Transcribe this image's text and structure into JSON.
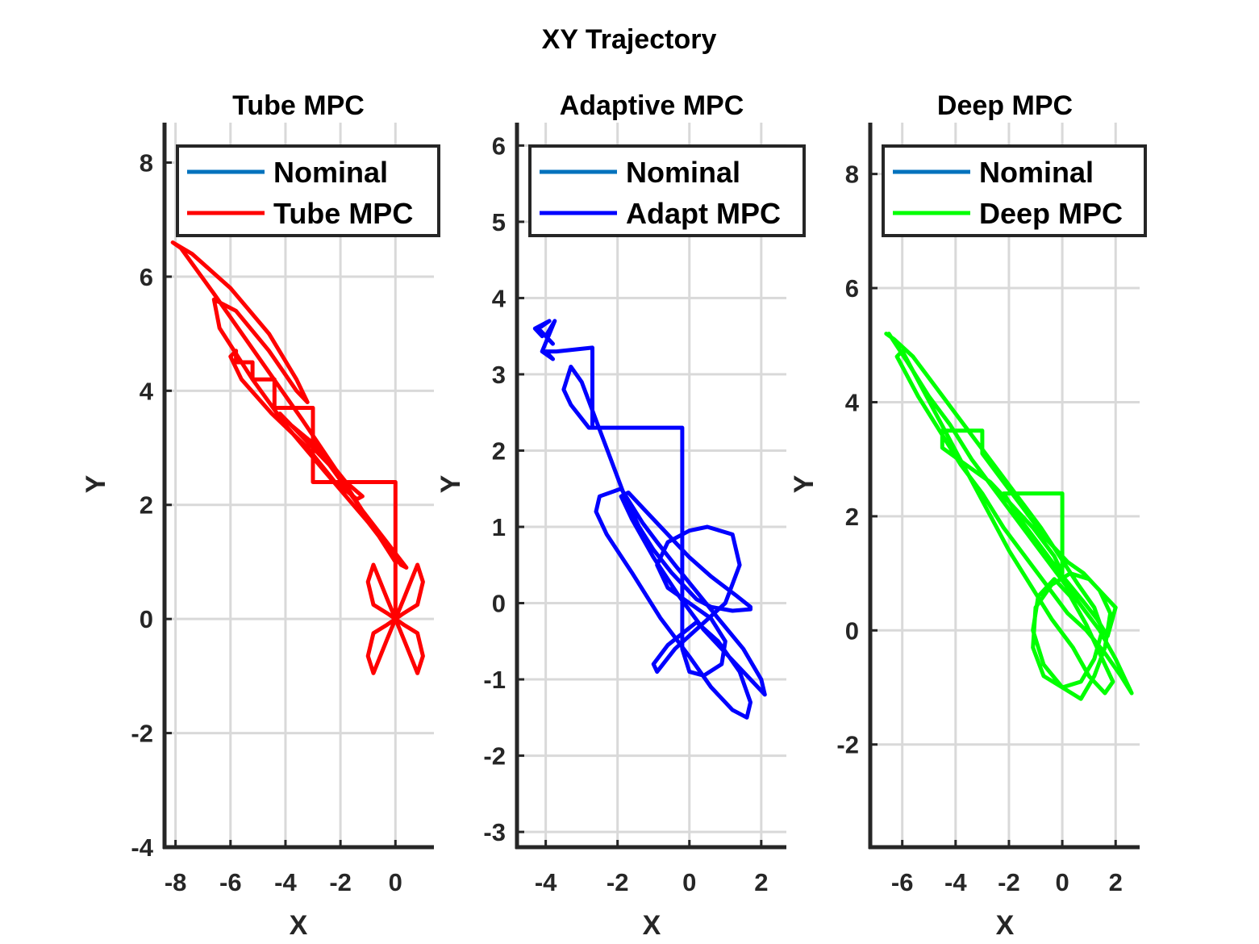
{
  "chart_data": [
    {
      "type": "line",
      "title": "XY Trajectory",
      "subtitle": "Tube MPC",
      "xlabel": "X",
      "ylabel": "Y",
      "xlim": [
        -8.4,
        1.4
      ],
      "ylim": [
        -4,
        8.7
      ],
      "xticks": [
        -8,
        -6,
        -4,
        -2,
        0
      ],
      "yticks": [
        -4,
        -2,
        0,
        2,
        4,
        6,
        8
      ],
      "grid": true,
      "legend": "top-left",
      "series": [
        {
          "name": "Nominal",
          "color": "#0072BD",
          "x": [],
          "y": []
        },
        {
          "name": "Tube MPC",
          "color": "#FF0000",
          "x": [
            0.0,
            0.3,
            0.8,
            1.0,
            0.8,
            0.3,
            0.0,
            -0.3,
            -0.8,
            -1.0,
            -0.8,
            -0.3,
            0.0,
            0.3,
            0.8,
            1.0,
            0.8,
            0.3,
            0.0,
            -0.3,
            -0.8,
            -1.0,
            -0.8,
            -0.3,
            0.0,
            0.0,
            0.0,
            -3.0,
            -3.0,
            -3.8,
            -3.8,
            -4.4,
            -4.4,
            -5.2,
            -5.2,
            -5.8,
            -5.8,
            -6.0,
            -5.6,
            -4.5,
            -3.2,
            -2.2,
            -1.4,
            -1.2,
            -1.8,
            -2.8,
            -3.8,
            -4.2,
            -3.6,
            -2.4,
            -1.2,
            -0.4,
            0.4,
            0.2,
            -1.0,
            -2.6,
            -4.0,
            -5.2,
            -6.4,
            -6.6,
            -5.8,
            -4.6,
            -3.6,
            -3.2,
            -3.6,
            -4.6,
            -6.0,
            -7.4,
            -8.1,
            -7.8,
            -6.6,
            -5.0,
            -3.4,
            -2.0,
            -0.8,
            0.0
          ],
          "y": [
            0.0,
            0.35,
            0.95,
            0.65,
            0.25,
            0.1,
            0.0,
            -0.1,
            -0.25,
            -0.65,
            -0.95,
            -0.35,
            0.0,
            -0.35,
            -0.95,
            -0.65,
            -0.25,
            -0.1,
            0.0,
            0.1,
            0.25,
            0.65,
            0.95,
            0.35,
            0.0,
            1.0,
            2.4,
            2.4,
            3.7,
            3.7,
            3.7,
            3.7,
            4.2,
            4.2,
            4.5,
            4.5,
            4.7,
            4.6,
            4.2,
            3.6,
            3.0,
            2.4,
            2.1,
            2.15,
            2.4,
            3.0,
            3.4,
            3.6,
            3.3,
            2.7,
            1.9,
            1.4,
            0.9,
            0.95,
            1.7,
            2.6,
            3.4,
            4.2,
            5.1,
            5.6,
            5.4,
            4.7,
            4.0,
            3.8,
            4.2,
            5.0,
            5.8,
            6.4,
            6.6,
            6.5,
            5.7,
            4.6,
            3.5,
            2.5,
            1.6,
            1.0
          ]
        }
      ]
    },
    {
      "type": "line",
      "subtitle": "Adaptive MPC",
      "xlabel": "X",
      "ylabel": "Y",
      "xlim": [
        -4.8,
        2.7
      ],
      "ylim": [
        -3.2,
        6.3
      ],
      "xticks": [
        -4,
        -2,
        0,
        2
      ],
      "yticks": [
        -3,
        -2,
        -1,
        0,
        1,
        2,
        3,
        4,
        5,
        6
      ],
      "grid": true,
      "legend": "top-left",
      "series": [
        {
          "name": "Nominal",
          "color": "#0072BD",
          "x": [],
          "y": []
        },
        {
          "name": "Adapt MPC",
          "color": "#0000FF",
          "x": [
            -4.1,
            -4.3,
            -3.9,
            -4.2,
            -3.8,
            -4.0,
            -3.75,
            -4.1,
            -3.8,
            -4.0,
            -3.7,
            -2.7,
            -2.7,
            -2.8,
            -3.3,
            -3.5,
            -3.3,
            -3.0,
            -2.6,
            -2.2,
            -1.8,
            -1.4,
            -1.0,
            -0.5,
            -0.1,
            0.2,
            0.6,
            1.2,
            1.7,
            1.7,
            1.3,
            0.6,
            0.0,
            -0.6,
            -1.2,
            -1.7,
            -1.9,
            -1.6,
            -1.0,
            -0.3,
            0.4,
            1.1,
            1.7,
            2.1,
            2.0,
            1.5,
            0.8,
            0.2,
            -0.4,
            -0.9,
            -1.3,
            -1.9,
            -2.5,
            -2.6,
            -2.3,
            -1.6,
            -0.8,
            0.0,
            0.6,
            1.2,
            1.6,
            1.7,
            1.4,
            0.8,
            0.2,
            -0.6,
            -1.0,
            -0.9,
            -0.4,
            0.3,
            1.0,
            1.4,
            1.2,
            0.5,
            0.0,
            -0.6,
            -0.9,
            -0.6,
            0.0,
            0.6,
            1.0,
            0.9,
            0.4,
            0.0,
            -0.2,
            -0.2,
            -2.7,
            -2.7
          ],
          "y": [
            3.5,
            3.6,
            3.7,
            3.6,
            3.4,
            3.5,
            3.7,
            3.3,
            3.2,
            3.3,
            3.3,
            3.35,
            2.3,
            2.3,
            2.6,
            2.8,
            3.1,
            2.9,
            2.4,
            1.9,
            1.4,
            1.0,
            0.7,
            0.4,
            0.2,
            0.05,
            -0.05,
            -0.1,
            -0.08,
            -0.05,
            0.1,
            0.35,
            0.6,
            0.9,
            1.2,
            1.45,
            1.4,
            1.1,
            0.6,
            0.1,
            -0.35,
            -0.7,
            -1.0,
            -1.2,
            -1.0,
            -0.6,
            -0.2,
            0.15,
            0.5,
            0.8,
            1.05,
            1.5,
            1.4,
            1.2,
            0.9,
            0.4,
            -0.2,
            -0.7,
            -1.1,
            -1.4,
            -1.5,
            -1.3,
            -0.9,
            -0.5,
            -0.25,
            -0.55,
            -0.8,
            -0.9,
            -0.6,
            -0.3,
            0.0,
            0.5,
            0.9,
            1.0,
            0.95,
            0.8,
            0.5,
            0.2,
            0.0,
            -0.2,
            -0.5,
            -0.8,
            -0.95,
            -0.9,
            -0.6,
            2.3,
            2.3,
            2.3
          ]
        }
      ]
    },
    {
      "type": "line",
      "subtitle": "Deep MPC",
      "xlabel": "X",
      "ylabel": "Y",
      "xlim": [
        -7.2,
        2.9
      ],
      "ylim": [
        -3.8,
        8.9
      ],
      "xticks": [
        -6,
        -4,
        -2,
        0,
        2
      ],
      "yticks": [
        -2,
        0,
        2,
        4,
        6,
        8
      ],
      "grid": true,
      "legend": "top-left",
      "series": [
        {
          "name": "Nominal",
          "color": "#0072BD",
          "x": [],
          "y": []
        },
        {
          "name": "Deep MPC",
          "color": "#00FF00",
          "x": [
            -6.5,
            -5.8,
            -5.0,
            -4.2,
            -3.4,
            -2.6,
            -1.8,
            -1.0,
            -0.2,
            0.6,
            1.4,
            2.0,
            2.6,
            2.2,
            1.6,
            0.9,
            0.2,
            -0.6,
            -1.4,
            -2.2,
            -3.0,
            -3.8,
            -4.6,
            -5.4,
            -6.2,
            -6.0,
            -5.2,
            -4.4,
            -3.6,
            -2.8,
            -2.0,
            -1.2,
            -0.4,
            0.4,
            1.0,
            1.6,
            1.9,
            1.5,
            0.9,
            0.3,
            -0.3,
            -0.9,
            -1.1,
            -0.7,
            0.0,
            0.7,
            1.2,
            1.6,
            1.8,
            1.4,
            0.8,
            0.2,
            -0.6,
            -1.4,
            -2.2,
            -3.0,
            -3.0,
            -4.5,
            -4.5,
            -3.6,
            -2.7,
            -1.9,
            -1.1,
            -0.3,
            0.0,
            0.0,
            -2.2,
            -1.5,
            -0.7,
            0.1,
            0.8,
            1.3,
            1.7,
            2.0,
            1.6,
            1.0,
            0.3,
            -0.4,
            -1.0,
            -1.1,
            -0.7,
            0.0,
            0.7,
            1.2,
            1.5,
            1.2,
            0.6,
            -0.1,
            -0.8,
            -1.6,
            -2.4,
            -3.2,
            -4.0,
            -4.8,
            -5.6,
            -6.3,
            -6.6
          ],
          "y": [
            5.2,
            4.7,
            4.1,
            3.6,
            3.0,
            2.5,
            2.0,
            1.5,
            1.0,
            0.5,
            0.0,
            -0.5,
            -1.1,
            -0.8,
            -0.4,
            0.0,
            0.3,
            0.8,
            1.3,
            1.8,
            2.4,
            2.9,
            3.5,
            4.1,
            4.8,
            4.9,
            4.2,
            3.5,
            2.8,
            2.1,
            1.4,
            0.8,
            0.2,
            -0.3,
            -0.8,
            -1.1,
            -0.9,
            -0.5,
            0.1,
            0.6,
            0.9,
            0.6,
            0.0,
            -0.6,
            -1.0,
            -1.2,
            -0.8,
            -0.3,
            0.3,
            0.7,
            1.0,
            1.2,
            1.6,
            2.1,
            2.6,
            3.1,
            3.5,
            3.5,
            3.2,
            2.9,
            2.6,
            2.2,
            1.8,
            1.3,
            1.0,
            2.4,
            2.4,
            1.9,
            1.4,
            0.9,
            0.5,
            0.2,
            -0.1,
            0.4,
            0.6,
            0.9,
            1.0,
            0.8,
            0.4,
            -0.3,
            -0.8,
            -1.0,
            -0.9,
            -0.5,
            0.0,
            0.4,
            0.8,
            1.3,
            1.8,
            2.3,
            2.8,
            3.3,
            3.8,
            4.3,
            4.8,
            5.1,
            5.2
          ]
        }
      ]
    }
  ]
}
